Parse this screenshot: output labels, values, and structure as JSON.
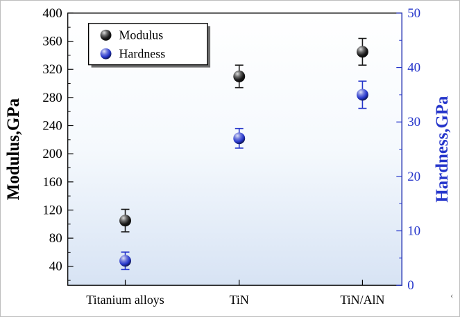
{
  "figure": {
    "background": "#ffffff",
    "border_color": "#bdbdbd",
    "stray_glyph": "‹"
  },
  "chart_data": {
    "type": "scatter",
    "title": "",
    "categories": [
      "Titanium alloys",
      "TiN",
      "TiN/AlN"
    ],
    "series": [
      {
        "name": "Modulus",
        "axis": "left",
        "color": "#1a1a1a",
        "values": [
          105,
          310,
          345
        ],
        "errors": [
          16,
          16,
          19
        ]
      },
      {
        "name": "Hardness",
        "axis": "right",
        "color": "#2636cb",
        "values": [
          4.5,
          27,
          35
        ],
        "errors": [
          1.6,
          1.8,
          2.5
        ]
      }
    ],
    "left_axis": {
      "label": "Modulus,GPa",
      "min": 13,
      "max": 400,
      "ticks": [
        40,
        80,
        120,
        160,
        200,
        240,
        280,
        320,
        360,
        400
      ],
      "minor_ticks": [
        20,
        60,
        100,
        140,
        180,
        220,
        260,
        300,
        340,
        380
      ],
      "color": "#000000"
    },
    "right_axis": {
      "label": "Hardness,GPa",
      "min": 0,
      "max": 50,
      "ticks": [
        0,
        10,
        20,
        30,
        40,
        50
      ],
      "minor_ticks": [
        5,
        15,
        25,
        35,
        45
      ],
      "color": "#2636cb"
    },
    "legend": {
      "items": [
        "Modulus",
        "Hardness"
      ],
      "position": "top-left"
    },
    "plot_background_gradient": [
      "#ffffff",
      "#f5f9fd",
      "#d7e3f4"
    ],
    "grid": false
  }
}
